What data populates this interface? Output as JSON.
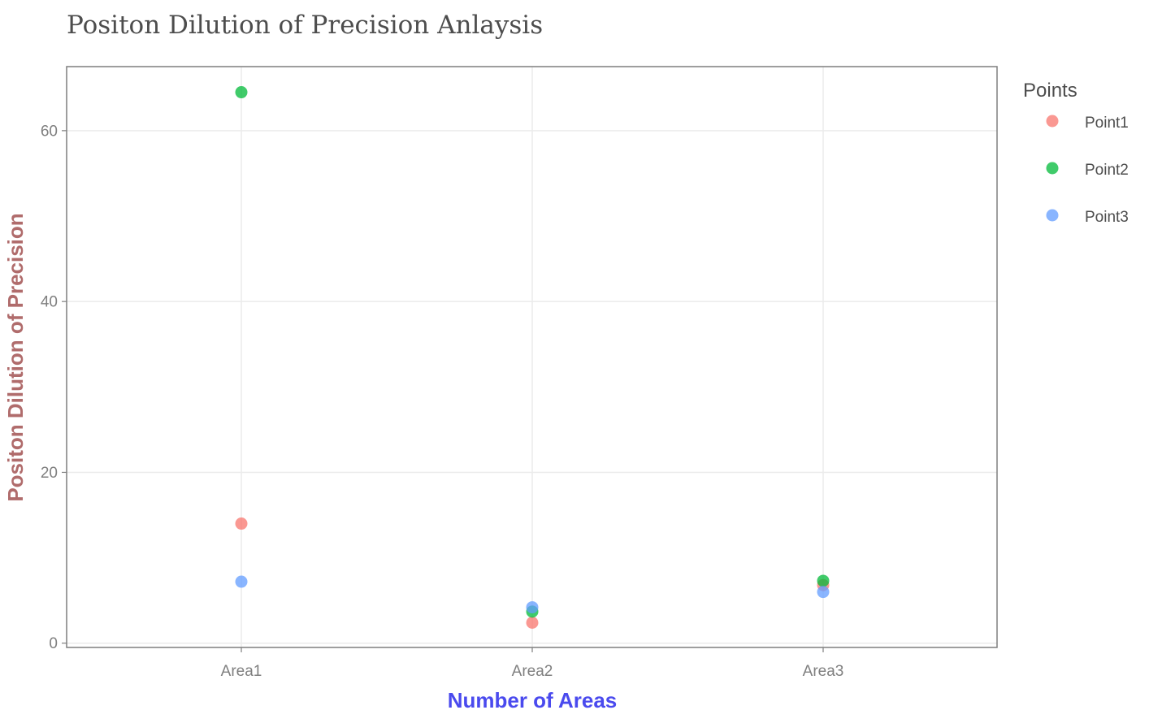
{
  "chart_data": {
    "type": "scatter",
    "title": "Positon Dilution of Precision Anlaysis",
    "xlabel": "Number of Areas",
    "ylabel": "Positon Dilution of Precision",
    "categories": [
      "Area1",
      "Area2",
      "Area3"
    ],
    "ylim": [
      -0.5,
      67.5
    ],
    "yticks": [
      "0",
      "20",
      "40",
      "60"
    ],
    "grid": true,
    "legend": {
      "title": "Points",
      "placement": "right"
    },
    "series": [
      {
        "name": "Point1",
        "color": "#F8766D",
        "values": [
          14.0,
          2.4,
          6.8
        ]
      },
      {
        "name": "Point2",
        "color": "#00BA38",
        "values": [
          64.5,
          3.7,
          7.3
        ]
      },
      {
        "name": "Point3",
        "color": "#619CFF",
        "values": [
          7.2,
          4.2,
          6.0
        ]
      }
    ],
    "colors": {
      "xlabel": "#4a4aee",
      "ylabel": "#b06c6c",
      "title": "#4d4d4d",
      "tick": "#7f7f7f",
      "grid": "#ebebeb",
      "panel_border": "#7f7f7f"
    }
  }
}
